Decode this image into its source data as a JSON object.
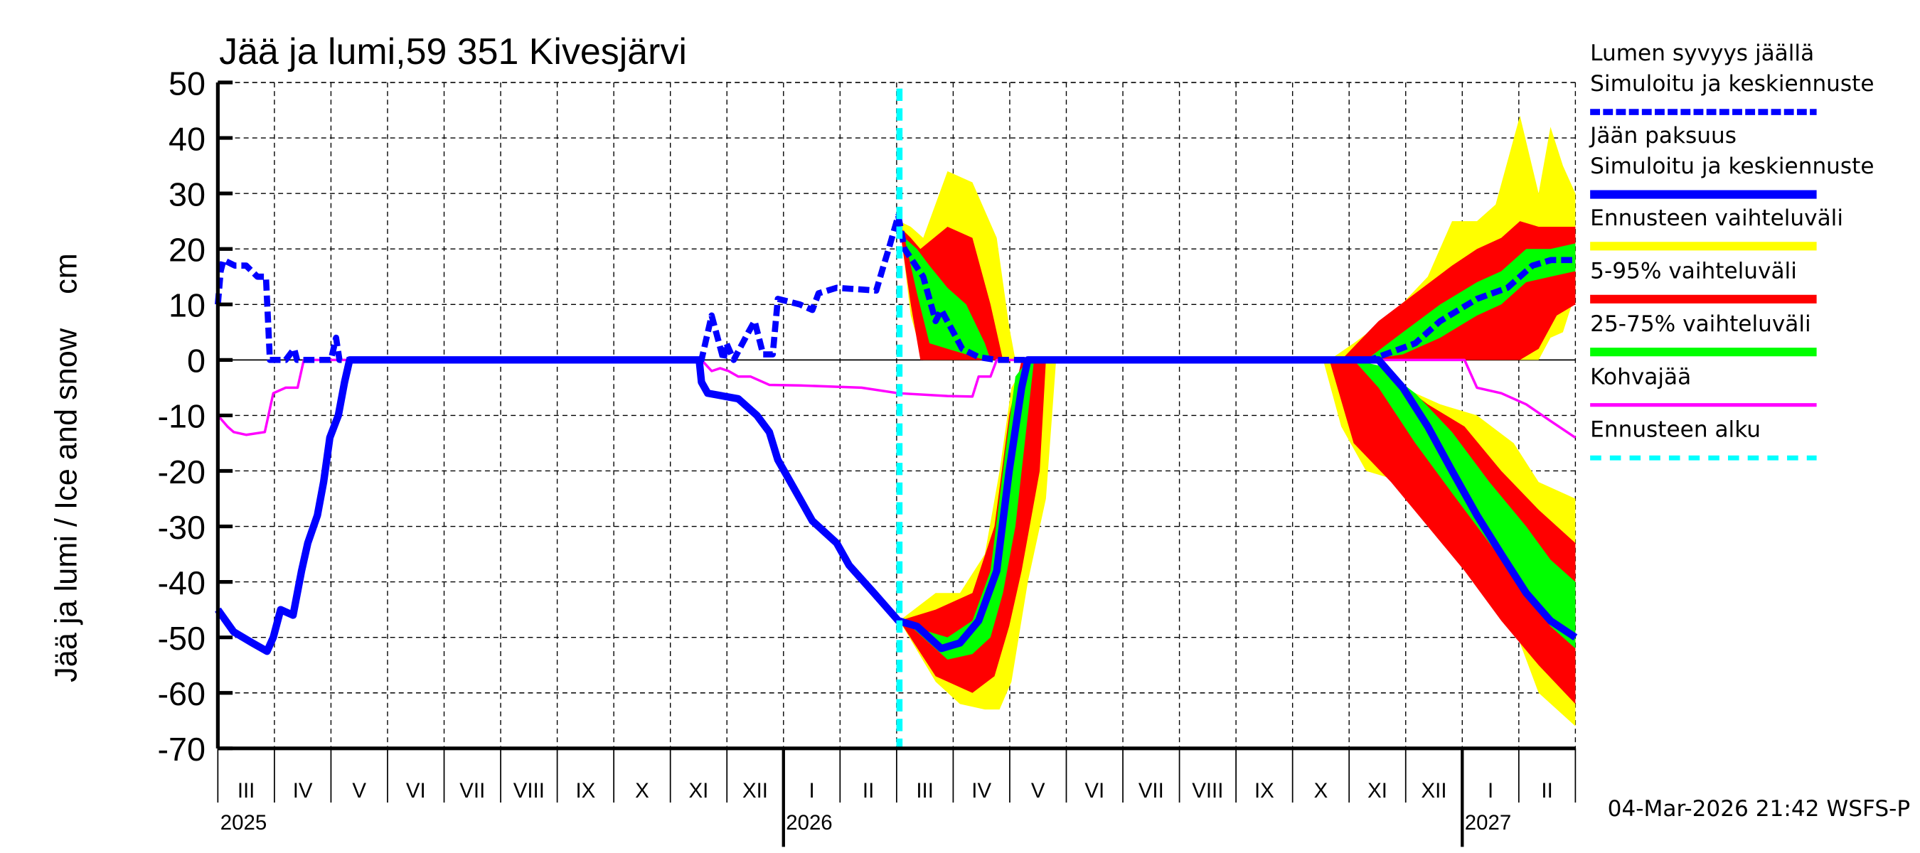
{
  "chart_data": {
    "type": "area",
    "title": "Jää ja lumi,59 351 Kivesjärvi",
    "ylabel": "Jää ja lumi / Ice and snow    cm",
    "xlabel": "",
    "x_unit": "months since 2025-03-01",
    "xlim": [
      0,
      24
    ],
    "ylim": [
      -70,
      50
    ],
    "yticks": [
      50,
      40,
      30,
      20,
      10,
      0,
      -10,
      -20,
      -30,
      -40,
      -50,
      -60,
      -70
    ],
    "grid": true,
    "month_labels": [
      "III",
      "IV",
      "V",
      "VI",
      "VII",
      "VIII",
      "IX",
      "X",
      "XI",
      "XII",
      "I",
      "II",
      "III",
      "IV",
      "V",
      "VI",
      "VII",
      "VIII",
      "IX",
      "X",
      "XI",
      "XII",
      "I",
      "II"
    ],
    "year_labels": [
      {
        "label": "2025",
        "month": 0
      },
      {
        "label": "2026",
        "month": 10
      },
      {
        "label": "2027",
        "month": 22
      }
    ],
    "forecast_start": 12.05,
    "footer": "04-Mar-2026 21:42 WSFS-P",
    "legend": {
      "position": "right",
      "entries": [
        {
          "label": "Lumen syvyys jäällä",
          "label2": "Simuloitu ja keskiennuste",
          "style": "dashed",
          "color": "#0000ff"
        },
        {
          "label": "Jään paksuus",
          "label2": "Simuloitu ja keskiennuste",
          "style": "solid",
          "color": "#0000ff"
        },
        {
          "label": "Ennusteen vaihteluväli",
          "style": "band",
          "color": "#ffff00"
        },
        {
          "label": "5-95% vaihteluväli",
          "style": "band",
          "color": "#ff0000"
        },
        {
          "label": "25-75% vaihteluväli",
          "style": "band",
          "color": "#00ff00"
        },
        {
          "label": "Kohvajää",
          "style": "thin",
          "color": "#ff00ff"
        },
        {
          "label": "Ennusteen alku",
          "style": "dashed-thick",
          "color": "#00ffff"
        }
      ]
    },
    "bands": [
      {
        "name": "range",
        "color": "#ffff00",
        "segments": [
          [
            [
              12.05,
              25,
              25
            ],
            [
              12.25,
              8,
              24
            ],
            [
              12.47,
              0,
              22
            ],
            [
              12.9,
              0,
              34
            ],
            [
              13.34,
              0,
              32
            ],
            [
              13.77,
              0,
              22
            ],
            [
              13.99,
              0,
              6
            ],
            [
              14.1,
              0,
              0
            ]
          ],
          [
            [
              12.05,
              -47,
              -47
            ],
            [
              12.69,
              -58,
              -42
            ],
            [
              13.12,
              -62,
              -42
            ],
            [
              13.56,
              -63,
              -35
            ],
            [
              13.82,
              -63,
              -20
            ],
            [
              14.03,
              -58,
              -5
            ],
            [
              14.32,
              -40,
              0
            ],
            [
              14.64,
              -25,
              0
            ],
            [
              14.82,
              0,
              0
            ]
          ],
          [
            [
              19.65,
              0,
              0
            ],
            [
              20.08,
              0,
              3
            ],
            [
              20.74,
              0,
              8
            ],
            [
              21.39,
              0,
              15
            ],
            [
              21.82,
              0,
              25
            ],
            [
              22.26,
              0,
              25
            ],
            [
              22.59,
              0,
              28
            ],
            [
              23.02,
              0,
              44
            ],
            [
              23.35,
              0,
              30
            ],
            [
              23.56,
              4,
              42
            ],
            [
              23.78,
              5,
              35
            ],
            [
              24,
              12,
              30
            ]
          ],
          [
            [
              19.54,
              0,
              0
            ],
            [
              19.86,
              -12,
              0
            ],
            [
              20.3,
              -20,
              -1
            ],
            [
              20.95,
              -22,
              -5
            ],
            [
              21.61,
              -28,
              -8
            ],
            [
              22.26,
              -38,
              -10
            ],
            [
              22.91,
              -48,
              -15
            ],
            [
              23.35,
              -60,
              -22
            ],
            [
              24,
              -66,
              -25
            ]
          ]
        ]
      },
      {
        "name": "p5-95",
        "color": "#ff0000",
        "segments": [
          [
            [
              12.05,
              24,
              24
            ],
            [
              12.25,
              10,
              22
            ],
            [
              12.42,
              0,
              20
            ],
            [
              12.9,
              0,
              24
            ],
            [
              13.34,
              0,
              22
            ],
            [
              13.66,
              0,
              10
            ],
            [
              13.88,
              0,
              0
            ]
          ],
          [
            [
              12.05,
              -47,
              -47
            ],
            [
              12.69,
              -57,
              -45
            ],
            [
              13.34,
              -60,
              -42
            ],
            [
              13.73,
              -57,
              -30
            ],
            [
              13.99,
              -48,
              -10
            ],
            [
              14.21,
              -38,
              0
            ],
            [
              14.53,
              -20,
              0
            ],
            [
              14.64,
              0,
              0
            ]
          ],
          [
            [
              19.86,
              0,
              0
            ],
            [
              20.52,
              0,
              7
            ],
            [
              21.17,
              0,
              12
            ],
            [
              21.82,
              0,
              17
            ],
            [
              22.26,
              0,
              20
            ],
            [
              22.69,
              0,
              22
            ],
            [
              23.02,
              0,
              25
            ],
            [
              23.35,
              2,
              24
            ],
            [
              23.67,
              8,
              24
            ],
            [
              24,
              10,
              24
            ]
          ],
          [
            [
              19.65,
              0,
              0
            ],
            [
              20.08,
              -15,
              0
            ],
            [
              20.74,
              -22,
              -3
            ],
            [
              21.39,
              -30,
              -8
            ],
            [
              22.04,
              -38,
              -12
            ],
            [
              22.69,
              -47,
              -20
            ],
            [
              23.35,
              -55,
              -27
            ],
            [
              24,
              -62,
              -33
            ]
          ]
        ]
      },
      {
        "name": "p25-75",
        "color": "#00ff00",
        "segments": [
          [
            [
              12.14,
              22,
              22
            ],
            [
              12.36,
              12,
              20
            ],
            [
              12.58,
              3,
              17
            ],
            [
              12.9,
              2,
              13
            ],
            [
              13.23,
              1,
              10
            ],
            [
              13.56,
              0,
              3
            ],
            [
              13.66,
              0,
              0
            ]
          ],
          [
            [
              12.25,
              -48,
              -48
            ],
            [
              12.9,
              -54,
              -50
            ],
            [
              13.34,
              -53,
              -47
            ],
            [
              13.66,
              -50,
              -38
            ],
            [
              13.88,
              -42,
              -20
            ],
            [
              14.1,
              -30,
              -3
            ],
            [
              14.32,
              -10,
              0
            ],
            [
              14.43,
              0,
              0
            ]
          ],
          [
            [
              20.3,
              0,
              0
            ],
            [
              20.95,
              1,
              5
            ],
            [
              21.61,
              4,
              10
            ],
            [
              22.26,
              8,
              14
            ],
            [
              22.69,
              10,
              16
            ],
            [
              23.13,
              14,
              20
            ],
            [
              23.56,
              15,
              20
            ],
            [
              24,
              16,
              21
            ]
          ],
          [
            [
              20.08,
              0,
              0
            ],
            [
              20.52,
              -5,
              -1
            ],
            [
              21.17,
              -15,
              -6
            ],
            [
              21.82,
              -24,
              -13
            ],
            [
              22.48,
              -33,
              -22
            ],
            [
              23.13,
              -42,
              -30
            ],
            [
              23.56,
              -48,
              -36
            ],
            [
              24,
              -52,
              -40
            ]
          ]
        ]
      }
    ],
    "series": [
      {
        "name": "Lumen syvyys jäällä",
        "color": "#0000ff",
        "style": "dashed",
        "points": [
          [
            0,
            10
          ],
          [
            0.05,
            16
          ],
          [
            0.1,
            18
          ],
          [
            0.3,
            17
          ],
          [
            0.5,
            17
          ],
          [
            0.7,
            15
          ],
          [
            0.85,
            15
          ],
          [
            0.92,
            0
          ],
          [
            1.2,
            0
          ],
          [
            1.35,
            2
          ],
          [
            1.4,
            0
          ],
          [
            2.0,
            0
          ],
          [
            2.09,
            4
          ],
          [
            2.15,
            0
          ],
          [
            8.55,
            0
          ],
          [
            8.73,
            8
          ],
          [
            8.94,
            0
          ],
          [
            8.99,
            3
          ],
          [
            9.12,
            0
          ],
          [
            9.38,
            5
          ],
          [
            9.49,
            7
          ],
          [
            9.64,
            1
          ],
          [
            9.81,
            1
          ],
          [
            9.9,
            11
          ],
          [
            10.29,
            10
          ],
          [
            10.51,
            9
          ],
          [
            10.62,
            12
          ],
          [
            10.94,
            13
          ],
          [
            11.64,
            12.5
          ],
          [
            11.77,
            17
          ],
          [
            11.86,
            20
          ],
          [
            12.03,
            26
          ],
          [
            12.14,
            20
          ],
          [
            12.47,
            15
          ],
          [
            12.69,
            7
          ],
          [
            12.79,
            9
          ],
          [
            12.95,
            6
          ],
          [
            13.16,
            2
          ],
          [
            13.45,
            0.5
          ],
          [
            13.77,
            0
          ],
          [
            20.37,
            0
          ],
          [
            21.17,
            3
          ],
          [
            21.61,
            7
          ],
          [
            22.26,
            11
          ],
          [
            22.8,
            13
          ],
          [
            23.24,
            17
          ],
          [
            23.57,
            18
          ],
          [
            24,
            18
          ]
        ]
      },
      {
        "name": "Jään paksuus",
        "color": "#0000ff",
        "style": "solid",
        "points": [
          [
            0,
            -45
          ],
          [
            0.28,
            -49
          ],
          [
            0.61,
            -51
          ],
          [
            0.87,
            -52.5
          ],
          [
            0.98,
            -50
          ],
          [
            1.11,
            -45
          ],
          [
            1.33,
            -46
          ],
          [
            1.48,
            -38
          ],
          [
            1.59,
            -33
          ],
          [
            1.76,
            -28
          ],
          [
            1.87,
            -22
          ],
          [
            1.98,
            -14
          ],
          [
            2.13,
            -10
          ],
          [
            2.24,
            -4
          ],
          [
            2.33,
            0
          ],
          [
            8.51,
            0
          ],
          [
            8.55,
            -4
          ],
          [
            8.66,
            -6
          ],
          [
            9.2,
            -7
          ],
          [
            9.53,
            -10
          ],
          [
            9.75,
            -13
          ],
          [
            9.9,
            -18
          ],
          [
            10.29,
            -25
          ],
          [
            10.51,
            -29
          ],
          [
            10.94,
            -33
          ],
          [
            11.16,
            -37
          ],
          [
            11.6,
            -42
          ],
          [
            12.03,
            -47
          ],
          [
            12.36,
            -48
          ],
          [
            12.79,
            -52
          ],
          [
            13.12,
            -51
          ],
          [
            13.45,
            -47
          ],
          [
            13.77,
            -38
          ],
          [
            13.99,
            -20
          ],
          [
            14.21,
            -5
          ],
          [
            14.32,
            0
          ],
          [
            20.52,
            0
          ],
          [
            20.95,
            -5
          ],
          [
            21.39,
            -12
          ],
          [
            21.82,
            -20
          ],
          [
            22.26,
            -28
          ],
          [
            22.69,
            -35
          ],
          [
            23.13,
            -42
          ],
          [
            23.56,
            -47
          ],
          [
            24,
            -50
          ]
        ]
      },
      {
        "name": "Kohvajää",
        "color": "#ff00ff",
        "style": "thin",
        "points": [
          [
            0,
            -10
          ],
          [
            0.17,
            -12
          ],
          [
            0.28,
            -13
          ],
          [
            0.5,
            -13.5
          ],
          [
            0.83,
            -13
          ],
          [
            0.98,
            -6
          ],
          [
            1.2,
            -5
          ],
          [
            1.41,
            -5
          ],
          [
            1.52,
            0
          ],
          [
            8.55,
            0
          ],
          [
            8.73,
            -2
          ],
          [
            8.88,
            -1.5
          ],
          [
            9.03,
            -2
          ],
          [
            9.2,
            -3
          ],
          [
            9.42,
            -3
          ],
          [
            9.75,
            -4.5
          ],
          [
            10.29,
            -4.6
          ],
          [
            11.38,
            -5
          ],
          [
            12.03,
            -6
          ],
          [
            12.9,
            -6.5
          ],
          [
            13.34,
            -6.6
          ],
          [
            13.45,
            -3
          ],
          [
            13.66,
            -3
          ],
          [
            13.77,
            0
          ],
          [
            22.04,
            0
          ],
          [
            22.26,
            -5
          ],
          [
            22.69,
            -6
          ],
          [
            23.13,
            -8
          ],
          [
            23.56,
            -11
          ],
          [
            24,
            -14
          ]
        ]
      }
    ]
  }
}
